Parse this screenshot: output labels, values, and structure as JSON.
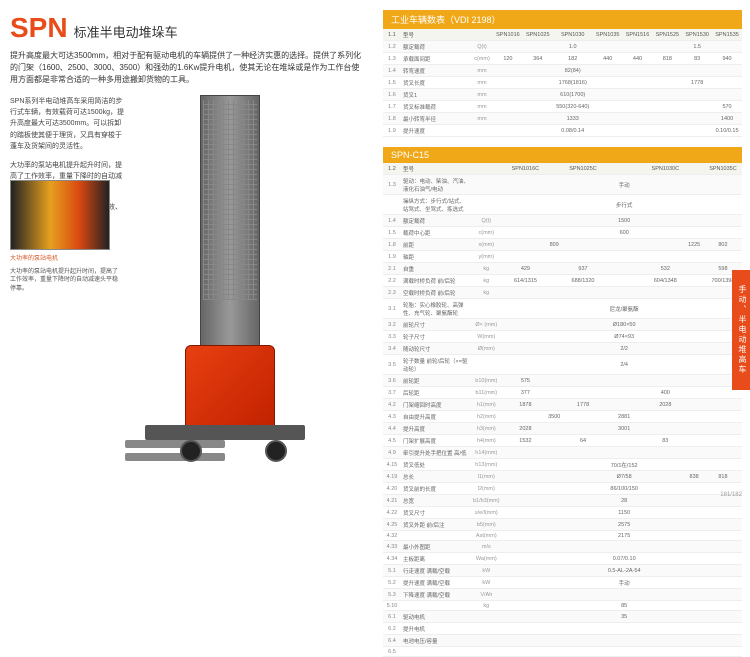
{
  "header": {
    "spn": "SPN",
    "subtitle": "标准半电动堆垛车"
  },
  "lead": "提升高度最大可达3500mm，相对于配有驱动电机的车辆提供了一种经济实惠的选择。提供了系列化的门架（1600、2500、3000、3500）和强劲的1.6Kw提升电机，使其无论在堆垛或是作为工作台使用方面都是非常合适的一种多用途搬卸货物的工具。",
  "para1": "SPN系列半电动堆高车采用简洁的步行式车辆，有效载荷可达1500kg，提升高度最大可达3500mm。可以拆卸的踏板使其便于理货，又具有穿梭于蓬车及货架间的灵活性。",
  "para2": "大功率的泵站电机提升起升时间，提高了工作效率，重量下降时的自动减速头平稳停靠。",
  "para3": "高效率的直流驱动保证稳速的高效、快捷",
  "thumb1_cap": "大功率的泵站电机",
  "thumb1_desc": "大功率的泵站电机提升起升时间，提高了工作效率，重量下降时的自动减速头平稳停靠。",
  "tbl1": {
    "title": "工业车辆数表（VDI 2198）",
    "header": [
      "1.1",
      "型号",
      "",
      "SPN1016",
      "SPN1025",
      "SPN1030",
      "SPN1035",
      "SPN1516",
      "SPN1525",
      "SPN1530",
      "SPN1535"
    ],
    "rows": [
      [
        "1.2",
        "额定载荷",
        "Q(t)",
        "",
        "",
        "1.0",
        "",
        "",
        "",
        "1.5",
        ""
      ],
      [
        "1.3",
        "承载面间距",
        "c(mm)",
        "120",
        "364",
        "182",
        "440",
        "440",
        "818",
        "83",
        "940",
        "567"
      ],
      [
        "1.4",
        "转弯速度",
        "mm",
        "",
        "",
        "82(84)",
        "",
        "",
        "",
        "",
        "",
        ""
      ],
      [
        "1.5",
        "货叉长度",
        "mm",
        "",
        "",
        "1768(1816)",
        "",
        "",
        "",
        "1778",
        "",
        ""
      ],
      [
        "1.6",
        "货叉1",
        "mm",
        "",
        "",
        "610(1700)",
        "",
        "",
        "",
        "",
        "",
        ""
      ],
      [
        "1.7",
        "货叉标准载荷",
        "mm",
        "",
        "",
        "550(320-640)",
        "",
        "",
        "",
        "",
        "570",
        ""
      ],
      [
        "1.8",
        "最小转弯半径",
        "mm",
        "",
        "",
        "1333",
        "",
        "",
        "",
        "",
        "1400",
        ""
      ],
      [
        "1.9",
        "提升速度",
        "",
        "",
        "",
        "0.08/0.14",
        "",
        "",
        "",
        "",
        "0.10/0.15",
        ""
      ]
    ]
  },
  "tbl2": {
    "title": "SPN-C15",
    "header": [
      "1.2",
      "型号",
      "",
      "",
      "SPN1016C",
      "",
      "SPN1025C",
      "",
      "SPN1030C",
      "",
      "SPN1035C"
    ],
    "rows": [
      [
        "1.3",
        "驱动：电动、柴油、汽油、液化石油气/电动",
        "",
        "",
        "",
        "",
        "",
        "手动",
        "",
        "",
        ""
      ],
      [
        "",
        "操纵方式：步行式/站式、站驾式、坐驾式、拣选式",
        "",
        "",
        "",
        "",
        "",
        "步行式",
        "",
        "",
        ""
      ],
      [
        "1.4",
        "额定载荷",
        "Q(t)",
        "",
        "",
        "",
        "",
        "1500",
        "",
        "",
        ""
      ],
      [
        "1.5",
        "载荷中心距",
        "c(mm)",
        "",
        "",
        "",
        "",
        "600",
        "",
        "",
        ""
      ],
      [
        "1.8",
        "前距",
        "x(mm)",
        "",
        "",
        "809",
        "",
        "",
        "",
        "1225",
        "802",
        ""
      ],
      [
        "1.9",
        "轴距",
        "y(mm)",
        "",
        "",
        "",
        "",
        "",
        "",
        "",
        "",
        ""
      ],
      [
        "2.1",
        "自重",
        "kg",
        "",
        "429",
        "",
        "937",
        "",
        "532",
        "",
        "598"
      ],
      [
        "2.2",
        "满载时桥负荷 前/后轮",
        "kg",
        "",
        "614/1315",
        "",
        "688/1320",
        "",
        "604/1348",
        "",
        "700/1398"
      ],
      [
        "2.3",
        "空载时桥负荷 前/后轮",
        "kg",
        "",
        "",
        "",
        "",
        "",
        "",
        "",
        ""
      ],
      [
        "3.1",
        "轮胎：实心橡胶轮、高弹性、充气轮、聚氨酯轮",
        "",
        "",
        "",
        "",
        "",
        "尼龙/聚氨酯",
        "",
        ""
      ],
      [
        "3.2",
        "前轮尺寸",
        "Ø× (mm)",
        "",
        "",
        "",
        "",
        "Ø180×50",
        "",
        "",
        ""
      ],
      [
        "3.3",
        "轮子尺寸",
        "W(mm)",
        "",
        "",
        "",
        "",
        "Ø74×93",
        "",
        "",
        ""
      ],
      [
        "3.4",
        "随动轮尺寸",
        "Ø(mm)",
        "",
        "",
        "",
        "",
        "2/2",
        "",
        "",
        ""
      ],
      [
        "3.5",
        "轮子数量 前轮/后轮（×=驱动轮）",
        "",
        "",
        "",
        "",
        "",
        "2/4",
        "",
        "",
        ""
      ],
      [
        "3.6",
        "前轮距",
        "b10(mm)",
        "",
        "575",
        "",
        "",
        "",
        "",
        "",
        ""
      ],
      [
        "3.7",
        "后轮距",
        "b11(mm)",
        "",
        "377",
        "",
        "",
        "",
        "400",
        "",
        ""
      ],
      [
        "4.2",
        "门架缩回时高度",
        "h1(mm)",
        "",
        "1878",
        "",
        "1778",
        "",
        "2028",
        "",
        ""
      ],
      [
        "4.3",
        "自由提升高度",
        "h2(mm)",
        "",
        "",
        "3500",
        "",
        "2881",
        "",
        "",
        ""
      ],
      [
        "4.4",
        "提升高度",
        "h3(mm)",
        "",
        "2028",
        "",
        "",
        "3001",
        "",
        "",
        ""
      ],
      [
        "4.5",
        "门架扩展高度",
        "h4(mm)",
        "",
        "1532",
        "",
        "64",
        "",
        "83",
        "",
        ""
      ],
      [
        "4.9",
        "牵引提升处手把位置 高/低",
        "h14(mm)",
        "",
        "",
        "",
        "",
        "",
        "",
        "",
        ""
      ],
      [
        "4.15",
        "货叉低处",
        "h13(mm)",
        "",
        "",
        "",
        "",
        "70/1在/152",
        "",
        ""
      ],
      [
        "4.19",
        "总长",
        "l1(mm)",
        "",
        "",
        "",
        "",
        "Ø7/58",
        "",
        "838",
        "818",
        "848"
      ],
      [
        "4.20",
        "货叉前的长度",
        "l2(mm)",
        "",
        "",
        "",
        "",
        "86/100/150",
        "",
        "",
        ""
      ],
      [
        "4.21",
        "总宽",
        "b1/b3(mm)",
        "",
        "",
        "",
        "",
        "28",
        "",
        "",
        ""
      ],
      [
        "4.22",
        "货叉尺寸",
        "s/e/l(mm)",
        "",
        "",
        "",
        "",
        "1150",
        "",
        "",
        ""
      ],
      [
        "4.25",
        "货叉外距 前/后注",
        "b5(mm)",
        "",
        "",
        "",
        "",
        "2575",
        "",
        "",
        ""
      ],
      [
        "4.32",
        "",
        "Ast(mm)",
        "",
        "",
        "",
        "",
        "2175",
        "",
        "",
        ""
      ],
      [
        "4.33",
        "最小外图距",
        "m/s",
        "",
        "",
        "",
        "",
        "",
        "",
        "",
        ""
      ],
      [
        "4.34",
        "主板距离",
        "Wa(mm)",
        "",
        "",
        "",
        "",
        "0.07/0.10",
        "",
        "",
        ""
      ],
      [
        "5.1",
        "行走速度 满载/空载",
        "kW",
        "",
        "",
        "",
        "",
        "0.5-AL-2A-54",
        "",
        "",
        ""
      ],
      [
        "5.2",
        "提升速度 满载/空载",
        "kW",
        "",
        "",
        "",
        "",
        "手动",
        "",
        "",
        ""
      ],
      [
        "5.3",
        "下降速度 满载/空载",
        "V/Ah",
        "",
        "",
        "",
        "",
        "",
        "",
        "",
        ""
      ],
      [
        "5.10",
        "",
        "kg",
        "",
        "",
        "",
        "",
        "85",
        "",
        "",
        ""
      ],
      [
        "6.1",
        "驱动电机",
        "",
        "",
        "",
        "",
        "",
        "35",
        "",
        "",
        ""
      ],
      [
        "6.2",
        "提升电机",
        "",
        "",
        "",
        "",
        "",
        "",
        "",
        "",
        ""
      ],
      [
        "6.4",
        "电池电压/容量",
        "",
        "",
        "",
        "",
        "",
        "",
        "",
        "",
        ""
      ],
      [
        "6.5",
        "",
        "",
        "",
        "",
        "",
        "",
        "",
        "",
        "",
        ""
      ]
    ]
  },
  "sidetab": "手动、半电动堆高车",
  "pagenum": "181/182",
  "colors": {
    "accent": "#e84c1a",
    "tblhead": "#f0a818"
  }
}
